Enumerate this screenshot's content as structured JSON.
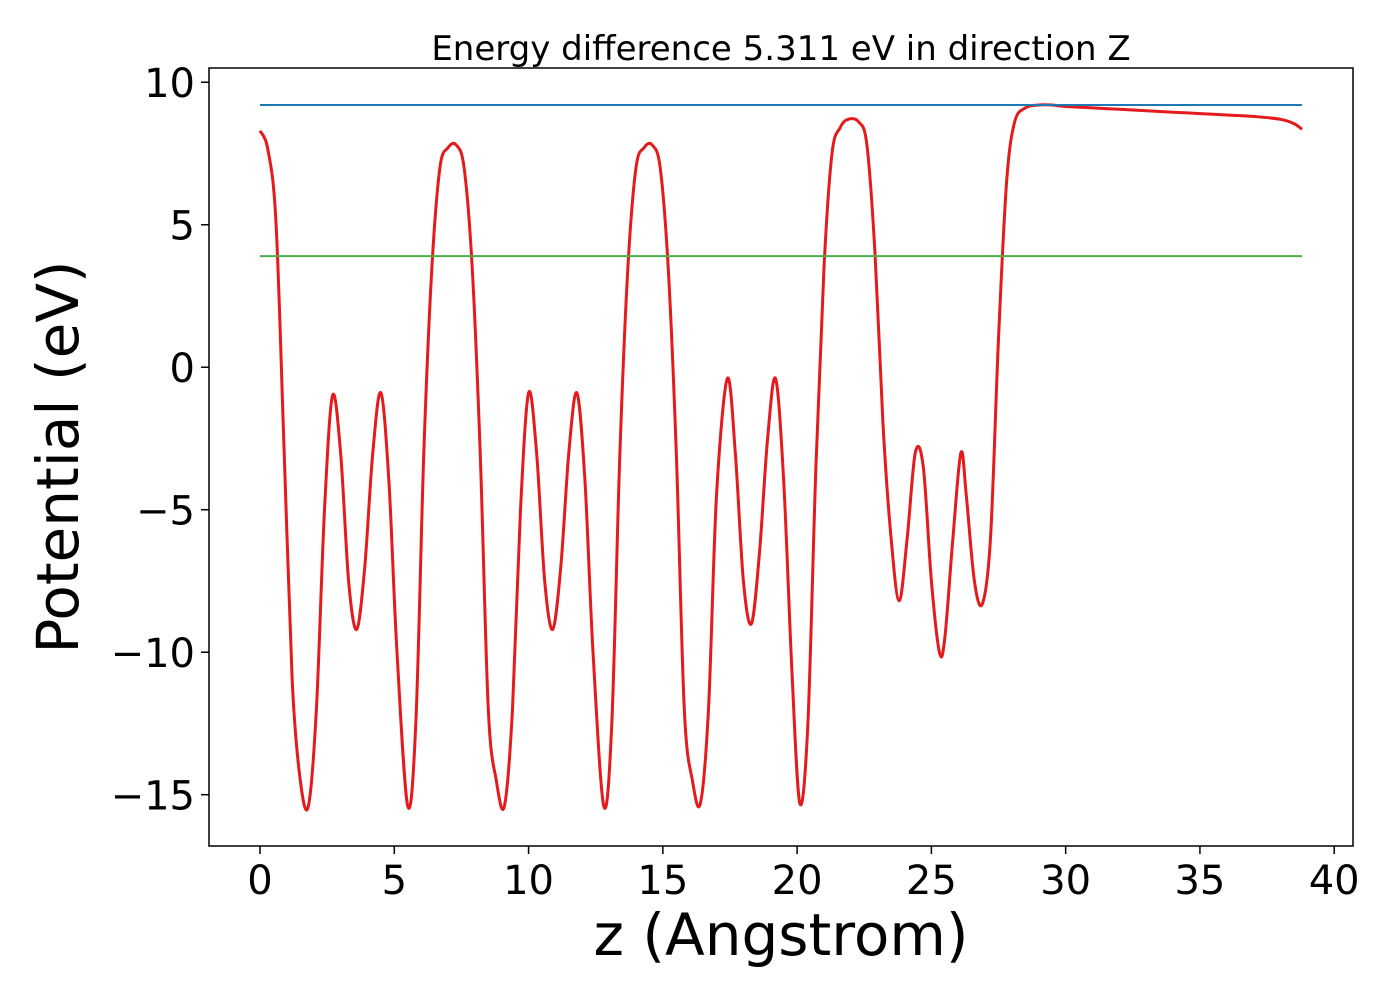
{
  "chart_data": {
    "type": "line",
    "title": "Energy difference 5.311 eV in direction Z",
    "xlabel": "z (Angstrom)",
    "ylabel": "Potential (eV)",
    "xlim": [
      -1.9,
      40.7
    ],
    "ylim": [
      -16.8,
      10.5
    ],
    "xticks": [
      0,
      5,
      10,
      15,
      20,
      25,
      30,
      35,
      40
    ],
    "yticks": [
      10,
      5,
      0,
      -5,
      -10,
      -15
    ],
    "xtick_labels": [
      "0",
      "5",
      "10",
      "15",
      "20",
      "25",
      "30",
      "35",
      "40"
    ],
    "ytick_labels": [
      "10",
      "5",
      "0",
      "−5",
      "−10",
      "−15"
    ],
    "grid": false,
    "legend": "none",
    "colors": {
      "potential": "#e41a1c",
      "vacuum_level": "#1f77b4",
      "fermi_level": "#4daf4a"
    },
    "series": [
      {
        "key": "potential",
        "color": "#e41a1c",
        "x": [
          0,
          0.3,
          0.6,
          0.9,
          1.2,
          1.5,
          1.8,
          2.1,
          2.4,
          2.7,
          3.0,
          3.3,
          3.6,
          3.9,
          4.2,
          4.5,
          4.8,
          5.1,
          5.5,
          5.8,
          6.1,
          6.4,
          6.7,
          7.0,
          7.3,
          7.6,
          7.9,
          8.2,
          8.5,
          8.8,
          9.1,
          9.4,
          9.7,
          10.0,
          10.3,
          10.6,
          10.9,
          11.2,
          11.5,
          11.8,
          12.1,
          12.4,
          12.8,
          13.1,
          13.4,
          13.7,
          14.0,
          14.3,
          14.6,
          14.9,
          15.2,
          15.5,
          15.8,
          16.1,
          16.4,
          16.7,
          17.0,
          17.4,
          17.7,
          18.0,
          18.3,
          18.6,
          18.9,
          19.2,
          19.5,
          19.8,
          20.1,
          20.4,
          20.7,
          21.0,
          21.3,
          21.6,
          21.9,
          22.3,
          22.6,
          22.9,
          23.2,
          23.5,
          23.8,
          24.1,
          24.4,
          24.7,
          25.0,
          25.3,
          25.5,
          25.8,
          26.1,
          26.3,
          26.6,
          26.9,
          27.2,
          27.5,
          27.8,
          28.1,
          28.5,
          29.0,
          29.5,
          30.0,
          31.0,
          32.0,
          33.0,
          34.0,
          35.0,
          36.0,
          37.0,
          38.0,
          38.5,
          38.8
        ],
        "y": [
          8.3,
          7.6,
          5.0,
          -3.0,
          -11.0,
          -14.5,
          -15.4,
          -12.0,
          -5.0,
          -1.0,
          -3.0,
          -7.5,
          -9.2,
          -7.0,
          -3.0,
          -0.9,
          -4.0,
          -10.0,
          -15.4,
          -12.5,
          -3.0,
          3.5,
          7.0,
          7.7,
          7.8,
          7.0,
          3.5,
          -3.0,
          -12.0,
          -14.5,
          -15.4,
          -12.0,
          -5.0,
          -0.9,
          -3.0,
          -7.5,
          -9.2,
          -7.0,
          -3.0,
          -0.9,
          -4.0,
          -10.0,
          -15.4,
          -12.5,
          -3.0,
          3.5,
          7.0,
          7.7,
          7.8,
          7.0,
          3.5,
          -3.0,
          -12.0,
          -14.5,
          -15.3,
          -12.0,
          -4.5,
          -0.4,
          -3.0,
          -7.5,
          -9.0,
          -6.5,
          -2.5,
          -0.4,
          -4.0,
          -10.5,
          -15.3,
          -12.5,
          -3.5,
          3.5,
          7.5,
          8.4,
          8.7,
          8.6,
          7.8,
          4.0,
          -2.0,
          -6.0,
          -8.2,
          -6.0,
          -3.0,
          -3.5,
          -7.5,
          -10.0,
          -9.5,
          -6.0,
          -3.0,
          -4.5,
          -7.5,
          -8.3,
          -6.0,
          1.0,
          6.5,
          8.6,
          9.1,
          9.2,
          9.2,
          9.15,
          9.1,
          9.05,
          9.0,
          8.95,
          8.9,
          8.85,
          8.8,
          8.7,
          8.55,
          8.35
        ]
      },
      {
        "key": "vacuum_level",
        "color": "#1f77b4",
        "x": [
          0,
          38.8
        ],
        "y": [
          9.2,
          9.2
        ]
      },
      {
        "key": "fermi_level",
        "color": "#4daf4a",
        "x": [
          0,
          38.8
        ],
        "y": [
          3.9,
          3.9
        ]
      }
    ]
  }
}
